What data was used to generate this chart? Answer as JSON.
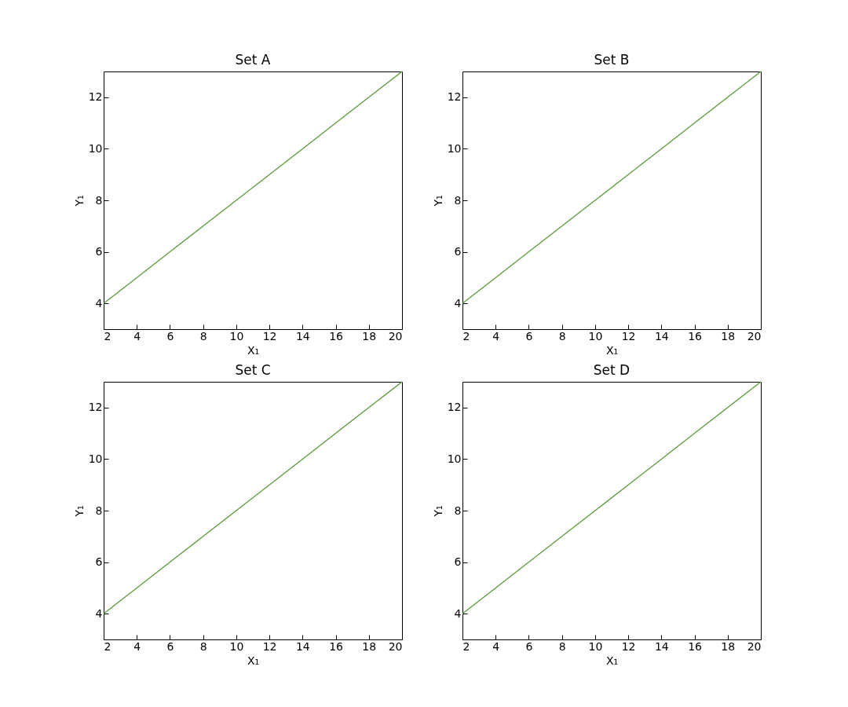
{
  "chart_data": [
    {
      "type": "line",
      "title": "Set A",
      "xlabel": "X₁",
      "ylabel": "Y₁",
      "x": [
        2,
        4,
        6,
        8,
        10,
        12,
        14,
        16,
        18,
        20
      ],
      "series": [
        {
          "color": "#5b9a3b",
          "values": [
            4,
            5,
            6,
            7,
            8,
            9,
            10,
            11,
            12,
            13
          ]
        }
      ],
      "xlim": [
        2,
        20
      ],
      "ylim": [
        3,
        13
      ],
      "xticks": [
        2,
        4,
        6,
        8,
        10,
        12,
        14,
        16,
        18,
        20
      ],
      "yticks": [
        4,
        6,
        8,
        10,
        12
      ]
    },
    {
      "type": "line",
      "title": "Set B",
      "xlabel": "X₁",
      "ylabel": "Y₁",
      "x": [
        2,
        4,
        6,
        8,
        10,
        12,
        14,
        16,
        18,
        20
      ],
      "series": [
        {
          "color": "#5b9a3b",
          "values": [
            4,
            5,
            6,
            7,
            8,
            9,
            10,
            11,
            12,
            13
          ]
        }
      ],
      "xlim": [
        2,
        20
      ],
      "ylim": [
        3,
        13
      ],
      "xticks": [
        2,
        4,
        6,
        8,
        10,
        12,
        14,
        16,
        18,
        20
      ],
      "yticks": [
        4,
        6,
        8,
        10,
        12
      ]
    },
    {
      "type": "line",
      "title": "Set C",
      "xlabel": "X₁",
      "ylabel": "Y₁",
      "x": [
        2,
        4,
        6,
        8,
        10,
        12,
        14,
        16,
        18,
        20
      ],
      "series": [
        {
          "color": "#5b9a3b",
          "values": [
            4,
            5,
            6,
            7,
            8,
            9,
            10,
            11,
            12,
            13
          ]
        }
      ],
      "xlim": [
        2,
        20
      ],
      "ylim": [
        3,
        13
      ],
      "xticks": [
        2,
        4,
        6,
        8,
        10,
        12,
        14,
        16,
        18,
        20
      ],
      "yticks": [
        4,
        6,
        8,
        10,
        12
      ]
    },
    {
      "type": "line",
      "title": "Set D",
      "xlabel": "X₁",
      "ylabel": "Y₁",
      "x": [
        2,
        4,
        6,
        8,
        10,
        12,
        14,
        16,
        18,
        20
      ],
      "series": [
        {
          "color": "#5b9a3b",
          "values": [
            4,
            5,
            6,
            7,
            8,
            9,
            10,
            11,
            12,
            13
          ]
        }
      ],
      "xlim": [
        2,
        20
      ],
      "ylim": [
        3,
        13
      ],
      "xticks": [
        2,
        4,
        6,
        8,
        10,
        12,
        14,
        16,
        18,
        20
      ],
      "yticks": [
        4,
        6,
        8,
        10,
        12
      ]
    }
  ]
}
